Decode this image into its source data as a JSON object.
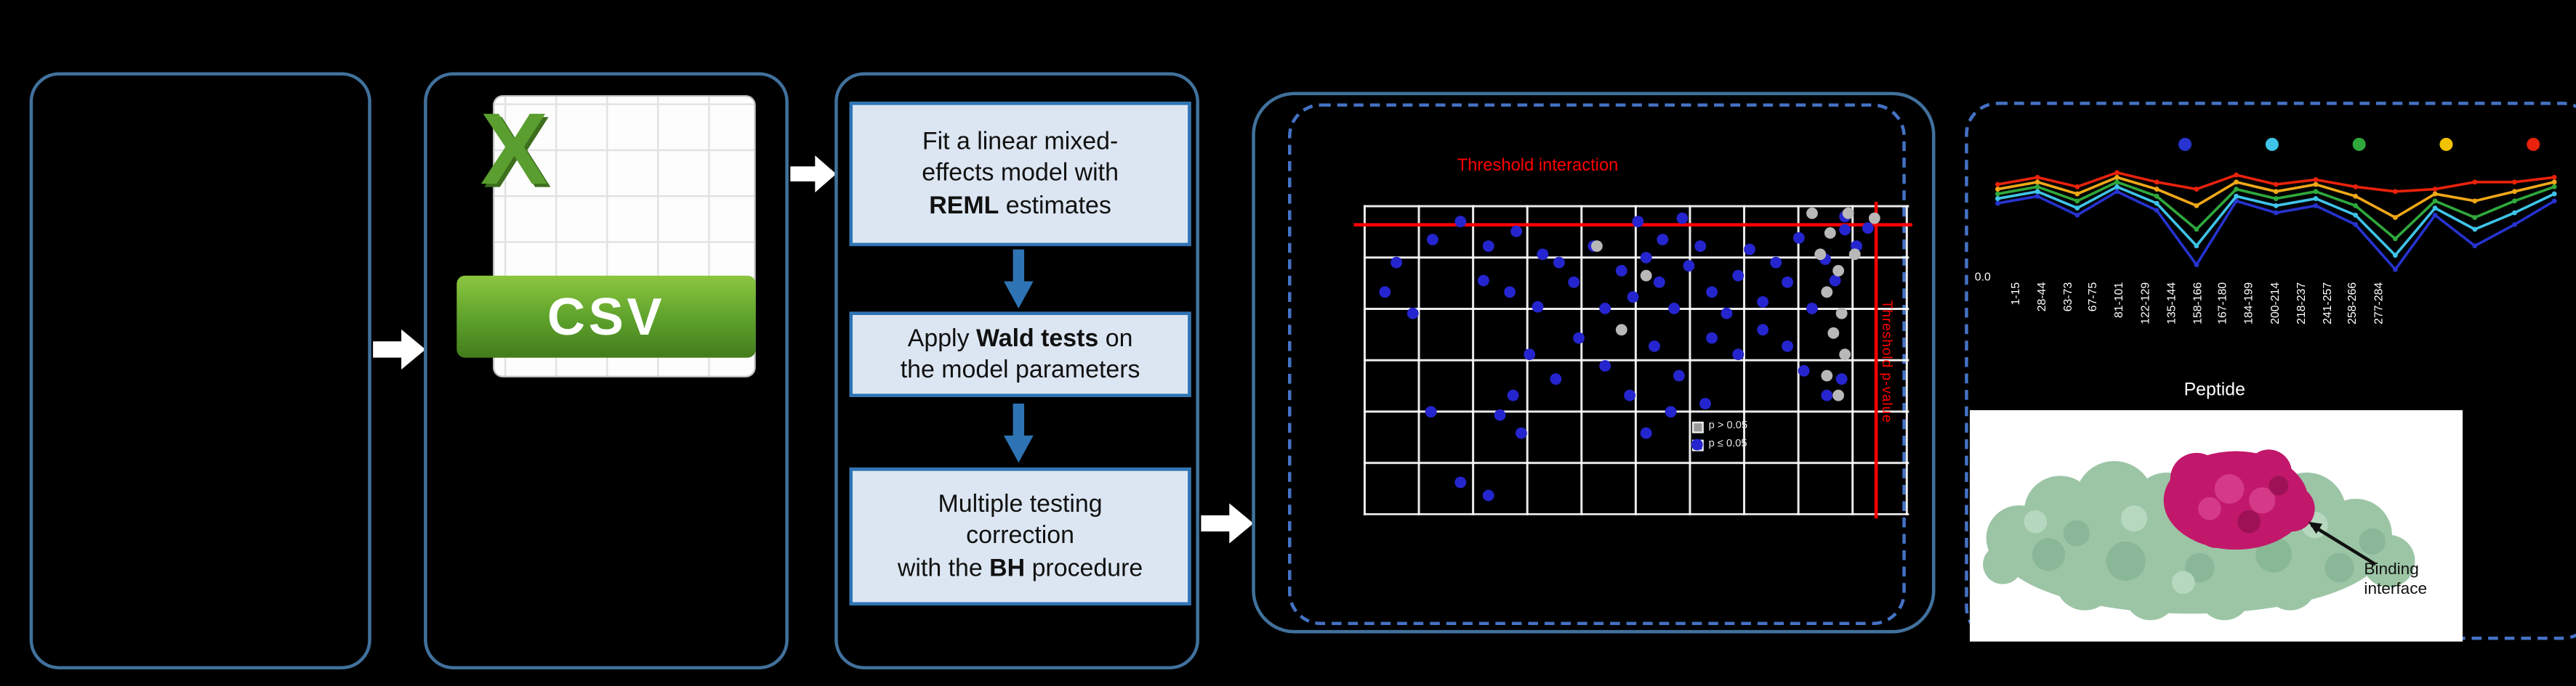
{
  "colors": {
    "background": "#000000",
    "panel_border": "#41719c",
    "dashed_border": "#4472c4",
    "step_fill": "#dce6f2",
    "step_border": "#2e74b5",
    "flow_arrow": "#ffffff",
    "down_arrow": "#2e74b5",
    "threshold_red": "#ff0000",
    "scatter_dot_blue": "#2525cf",
    "scatter_dot_grey": "#b8b8b8",
    "csv_green": "#5ca02b",
    "protein_surface_green": "#9cc5a6",
    "binding_site_magenta": "#c2186b"
  },
  "csv_icon": {
    "x_letter": "X",
    "banner_label": "CSV"
  },
  "steps": [
    {
      "lines": [
        [
          {
            "t": "Fit a linear mixed-"
          }
        ],
        [
          {
            "t": "effects model with"
          }
        ],
        [
          {
            "t": "REML",
            "b": true
          },
          {
            "t": " estimates"
          }
        ]
      ]
    },
    {
      "lines": [
        [
          {
            "t": "Apply "
          },
          {
            "t": "Wald tests",
            "b": true
          },
          {
            "t": " on"
          }
        ],
        [
          {
            "t": "the model parameters"
          }
        ]
      ]
    },
    {
      "lines": [
        [
          {
            "t": "Multiple testing"
          }
        ],
        [
          {
            "t": "correction"
          }
        ],
        [
          {
            "t": "with the "
          },
          {
            "t": "BH",
            "b": true
          },
          {
            "t": " procedure"
          }
        ]
      ]
    }
  ],
  "scatter": {
    "type": "scatter",
    "title": "Threshold interaction",
    "vline_label": "Threshold p-value",
    "legend": [
      {
        "label": "p > 0.05"
      },
      {
        "label": "p ≤ 0.05"
      }
    ],
    "points_blue": [
      [
        12.8,
        11.2
      ],
      [
        17.7,
        5.3
      ],
      [
        22.9,
        13.4
      ],
      [
        28,
        8.6
      ],
      [
        32.9,
        16
      ],
      [
        22,
        24.1
      ],
      [
        26.8,
        28.3
      ],
      [
        32,
        32.6
      ],
      [
        35.7,
        18.7
      ],
      [
        38.7,
        25.1
      ],
      [
        42.1,
        13.4
      ],
      [
        44.2,
        33.2
      ],
      [
        47.3,
        21.4
      ],
      [
        49.4,
        29.4
      ],
      [
        51.8,
        17.1
      ],
      [
        54.3,
        25.1
      ],
      [
        57,
        33.2
      ],
      [
        59.5,
        19.8
      ],
      [
        61.6,
        13.4
      ],
      [
        64,
        28.3
      ],
      [
        66.5,
        34.8
      ],
      [
        68.6,
        22.5
      ],
      [
        70.7,
        14.4
      ],
      [
        73.2,
        31
      ],
      [
        75.6,
        18.7
      ],
      [
        77.7,
        25.1
      ],
      [
        79.9,
        10.7
      ],
      [
        82.3,
        33.2
      ],
      [
        84.5,
        17.6
      ],
      [
        86.3,
        24.1
      ],
      [
        88.4,
        8
      ],
      [
        90.5,
        13.4
      ],
      [
        64,
        42.8
      ],
      [
        68.6,
        48.1
      ],
      [
        73.2,
        40.1
      ],
      [
        77.7,
        45.5
      ],
      [
        80.8,
        53.5
      ],
      [
        30.5,
        48.1
      ],
      [
        35.1,
        56.1
      ],
      [
        39.6,
        42.8
      ],
      [
        44.2,
        51.9
      ],
      [
        48.8,
        61.5
      ],
      [
        53.4,
        45.5
      ],
      [
        57.9,
        55.1
      ],
      [
        62.5,
        64.2
      ],
      [
        84.8,
        61.5
      ],
      [
        87.8,
        56.1
      ],
      [
        12.2,
        66.8
      ],
      [
        17.7,
        89.3
      ],
      [
        22.9,
        93.6
      ],
      [
        27.4,
        61.5
      ],
      [
        51.8,
        73.3
      ],
      [
        56.4,
        66.8
      ],
      [
        61,
        77.5
      ],
      [
        9.1,
        34.8
      ],
      [
        6.1,
        18.7
      ],
      [
        4,
        28.3
      ],
      [
        50.3,
        5.3
      ],
      [
        54.9,
        11.2
      ],
      [
        58.5,
        4.3
      ],
      [
        88.4,
        3.7
      ],
      [
        92.4,
        7.5
      ],
      [
        25,
        67.9
      ],
      [
        29,
        73.3
      ]
    ],
    "points_grey": [
      [
        82.3,
        2.7
      ],
      [
        85.4,
        9.1
      ],
      [
        83.8,
        16
      ],
      [
        86.9,
        21.4
      ],
      [
        84.8,
        28.3
      ],
      [
        87.8,
        34.8
      ],
      [
        86,
        41.2
      ],
      [
        88.4,
        48.1
      ],
      [
        84.8,
        55.1
      ],
      [
        86.9,
        61.5
      ],
      [
        89,
        2.7
      ],
      [
        90,
        16
      ],
      [
        42.7,
        13.4
      ],
      [
        51.8,
        23
      ],
      [
        47.3,
        40.1
      ],
      [
        93.6,
        4.3
      ]
    ]
  },
  "linechart": {
    "type": "line",
    "ytick": "0.0",
    "xlabel": "Peptide",
    "peptides": [
      "1-15",
      "28-44",
      "63-73",
      "67-75",
      "81-101",
      "122-129",
      "135-144",
      "158-166",
      "167-180",
      "184-199",
      "200-214",
      "218-237",
      "241-257",
      "258-266",
      "277-284"
    ],
    "legend_dot_colors": [
      "#2633cf",
      "#3fc3e8",
      "#2fa83c",
      "#f2c200",
      "#e8220c"
    ],
    "series": [
      {
        "name": "blue",
        "color": "#2633cf",
        "values": [
          36,
          30,
          46,
          26,
          42,
          88,
          34,
          44,
          38,
          54,
          92,
          46,
          72,
          54,
          34
        ]
      },
      {
        "name": "cyan",
        "color": "#3fc3e8",
        "values": [
          32,
          26,
          40,
          22,
          36,
          72,
          30,
          38,
          32,
          46,
          80,
          40,
          58,
          44,
          28
        ]
      },
      {
        "name": "green",
        "color": "#2fa83c",
        "values": [
          28,
          22,
          34,
          18,
          30,
          58,
          24,
          32,
          26,
          38,
          66,
          34,
          48,
          34,
          22
        ]
      },
      {
        "name": "orange",
        "color": "#f0a818",
        "values": [
          24,
          18,
          28,
          14,
          24,
          38,
          18,
          26,
          20,
          30,
          48,
          28,
          34,
          26,
          18
        ]
      },
      {
        "name": "red",
        "color": "#e8220c",
        "values": [
          20,
          14,
          22,
          10,
          18,
          24,
          12,
          20,
          16,
          22,
          26,
          24,
          18,
          18,
          14
        ]
      }
    ]
  },
  "protein": {
    "annotation_lines": [
      "Binding",
      "interface"
    ]
  }
}
